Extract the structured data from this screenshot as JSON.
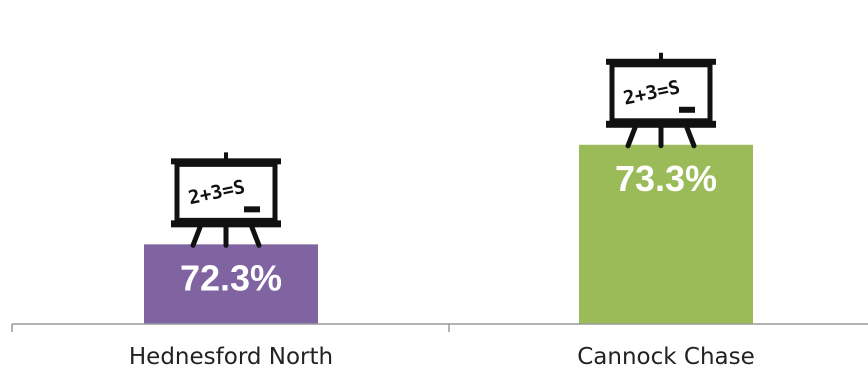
{
  "chart_data": {
    "type": "bar",
    "categories": [
      "Hednesford North",
      "Cannock Chase"
    ],
    "values": [
      72.3,
      73.3
    ],
    "data_labels": [
      "72.3%",
      "73.3%"
    ],
    "colors": [
      "#8064a2",
      "#9bbb59"
    ],
    "title": "",
    "xlabel": "",
    "ylabel": "",
    "ylim": [
      71.5,
      73.8
    ],
    "grid": false,
    "legend": "none",
    "decoration_icon": "chalkboard-easel-icon",
    "decoration_icon_text": "2+3=S"
  }
}
